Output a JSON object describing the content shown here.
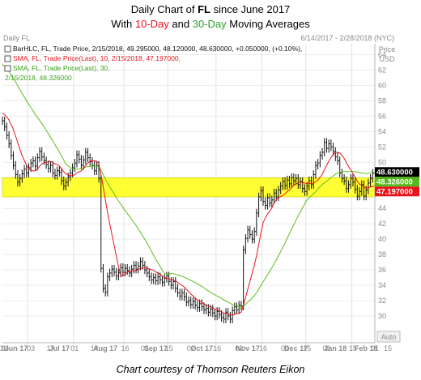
{
  "header": {
    "line1_pre": "Daily Chart of ",
    "line1_bold": "FL",
    "line1_post": " since June 2017",
    "line2_pre": "With ",
    "line2_ma10": "10-Day",
    "line2_mid": " and ",
    "line2_ma30": "30-Day",
    "line2_post": " Moving Averages"
  },
  "panel": {
    "name": "Daily FL",
    "date_range": "6/14/2017 - 2/28/2018 (NYC)",
    "price_label": "Price",
    "currency_label": "USD",
    "auto_label": "Auto"
  },
  "legend": {
    "bar": "BarHLC, FL, Trade Price, 2/15/2018, 49.295000, 48.120000, 48.630000, +0.050000, (+0.10%),",
    "sma10": "SMA, FL, Trade Price(Last),  10,  2/15/2018, 47.197000,",
    "sma30_a": "SMA, FL, Trade Price(Last),  30,",
    "sma30_b": "2/15/2018, 48.326000"
  },
  "value_tags": {
    "last": "48.630000",
    "sma30": "48.326000",
    "sma10": "47.197000"
  },
  "caption": "Chart courtesy of Thomson Reuters Eikon",
  "colors": {
    "price_bars": "#111111",
    "sma10": "#e8141c",
    "sma30": "#5cbf1c",
    "highlight": "#ffff33",
    "last_tag": "#000000",
    "sma30_tag": "#53b81a",
    "sma10_tag": "#e8141c"
  },
  "chart_data": {
    "type": "line",
    "title": "Daily Chart of FL since June 2017",
    "subtitle": "With 10-Day and 30-Day Moving Averages",
    "ylabel": "Price USD",
    "y_ticks": [
      30,
      32,
      34,
      36,
      38,
      40,
      42,
      44,
      46,
      48,
      50,
      52,
      54,
      56,
      58,
      60,
      62,
      64
    ],
    "ylim": [
      28,
      65
    ],
    "x_tick_labels": [
      "16",
      "Jun 17",
      "03",
      "17",
      "Jul 17",
      "01",
      "14",
      "Aug 17",
      "16",
      "01",
      "15",
      "Sep 17",
      "02",
      "16",
      "Oct 17",
      "02",
      "16",
      "Nov 17",
      "01",
      "15",
      "Dec 17",
      "01",
      "15",
      "Jan 18",
      "01",
      "15",
      "Feb 18",
      "01"
    ],
    "months": [
      "Jun 17",
      "Jul 17",
      "Aug 17",
      "Sep 17",
      "Oct 17",
      "Nov 17",
      "Dec 17",
      "Jan 18",
      "Feb 18"
    ],
    "highlight_band": [
      45.5,
      48
    ],
    "legend_position": "top-left",
    "grid": true,
    "series": [
      {
        "name": "BarHLC",
        "kind": "hlc",
        "bars": [
          {
            "date": "2017-06-14",
            "c": 55.4
          },
          {
            "date": "2017-06-15",
            "c": 54.6
          },
          {
            "date": "2017-06-16",
            "c": 53.5
          },
          {
            "date": "2017-06-19",
            "c": 52.4
          },
          {
            "date": "2017-06-20",
            "c": 50.9
          },
          {
            "date": "2017-06-21",
            "c": 49.6
          },
          {
            "date": "2017-06-22",
            "c": 48.4
          },
          {
            "date": "2017-06-23",
            "c": 47.4
          },
          {
            "date": "2017-06-26",
            "c": 47.9
          },
          {
            "date": "2017-06-27",
            "c": 48.5
          },
          {
            "date": "2017-06-28",
            "c": 49.1
          },
          {
            "date": "2017-06-29",
            "c": 48.6
          },
          {
            "date": "2017-06-30",
            "c": 49.3
          },
          {
            "date": "2017-07-03",
            "c": 49.9
          },
          {
            "date": "2017-07-05",
            "c": 50.2
          },
          {
            "date": "2017-07-06",
            "c": 49.5
          },
          {
            "date": "2017-07-07",
            "c": 50.6
          },
          {
            "date": "2017-07-10",
            "c": 51.4
          },
          {
            "date": "2017-07-11",
            "c": 50.7
          },
          {
            "date": "2017-07-12",
            "c": 50.2
          },
          {
            "date": "2017-07-13",
            "c": 49.7
          },
          {
            "date": "2017-07-14",
            "c": 49.2
          },
          {
            "date": "2017-07-17",
            "c": 49.6
          },
          {
            "date": "2017-07-18",
            "c": 48.6
          },
          {
            "date": "2017-07-19",
            "c": 48.3
          },
          {
            "date": "2017-07-20",
            "c": 48.9
          },
          {
            "date": "2017-07-21",
            "c": 48.7
          },
          {
            "date": "2017-07-24",
            "c": 47.6
          },
          {
            "date": "2017-07-25",
            "c": 46.9
          },
          {
            "date": "2017-07-26",
            "c": 47.4
          },
          {
            "date": "2017-07-27",
            "c": 48.1
          },
          {
            "date": "2017-07-28",
            "c": 48.6
          },
          {
            "date": "2017-07-31",
            "c": 49.3
          },
          {
            "date": "2017-08-01",
            "c": 49.9
          },
          {
            "date": "2017-08-02",
            "c": 51.0
          },
          {
            "date": "2017-08-03",
            "c": 50.4
          },
          {
            "date": "2017-08-04",
            "c": 49.6
          },
          {
            "date": "2017-08-07",
            "c": 50.3
          },
          {
            "date": "2017-08-08",
            "c": 51.3
          },
          {
            "date": "2017-08-09",
            "c": 50.6
          },
          {
            "date": "2017-08-10",
            "c": 50.1
          },
          {
            "date": "2017-08-11",
            "c": 49.6
          },
          {
            "date": "2017-08-14",
            "c": 48.9
          },
          {
            "date": "2017-08-15",
            "c": 49.6
          },
          {
            "date": "2017-08-16",
            "c": 47.9
          },
          {
            "date": "2017-08-17",
            "c": 36.2
          },
          {
            "date": "2017-08-18",
            "c": 33.6
          },
          {
            "date": "2017-08-21",
            "c": 33.1
          },
          {
            "date": "2017-08-22",
            "c": 35.1
          },
          {
            "date": "2017-08-23",
            "c": 35.6
          },
          {
            "date": "2017-08-24",
            "c": 36.1
          },
          {
            "date": "2017-08-25",
            "c": 35.7
          },
          {
            "date": "2017-08-28",
            "c": 35.2
          },
          {
            "date": "2017-08-29",
            "c": 35.6
          },
          {
            "date": "2017-08-30",
            "c": 36.3
          },
          {
            "date": "2017-08-31",
            "c": 35.7
          },
          {
            "date": "2017-09-01",
            "c": 36.2
          },
          {
            "date": "2017-09-05",
            "c": 35.9
          },
          {
            "date": "2017-09-06",
            "c": 35.6
          },
          {
            "date": "2017-09-07",
            "c": 36.1
          },
          {
            "date": "2017-09-08",
            "c": 36.6
          },
          {
            "date": "2017-09-11",
            "c": 36.1
          },
          {
            "date": "2017-09-12",
            "c": 36.5
          },
          {
            "date": "2017-09-13",
            "c": 37.1
          },
          {
            "date": "2017-09-14",
            "c": 36.6
          },
          {
            "date": "2017-09-15",
            "c": 36.0
          },
          {
            "date": "2017-09-18",
            "c": 35.6
          },
          {
            "date": "2017-09-19",
            "c": 35.1
          },
          {
            "date": "2017-09-20",
            "c": 34.7
          },
          {
            "date": "2017-09-21",
            "c": 35.0
          },
          {
            "date": "2017-09-22",
            "c": 34.6
          },
          {
            "date": "2017-09-25",
            "c": 35.1
          },
          {
            "date": "2017-09-26",
            "c": 34.7
          },
          {
            "date": "2017-09-27",
            "c": 34.4
          },
          {
            "date": "2017-09-28",
            "c": 34.9
          },
          {
            "date": "2017-09-29",
            "c": 35.2
          },
          {
            "date": "2017-10-02",
            "c": 34.5
          },
          {
            "date": "2017-10-03",
            "c": 34.0
          },
          {
            "date": "2017-10-04",
            "c": 34.5
          },
          {
            "date": "2017-10-05",
            "c": 33.6
          },
          {
            "date": "2017-10-06",
            "c": 33.0
          },
          {
            "date": "2017-10-09",
            "c": 32.6
          },
          {
            "date": "2017-10-10",
            "c": 33.0
          },
          {
            "date": "2017-10-11",
            "c": 32.5
          },
          {
            "date": "2017-10-12",
            "c": 31.8
          },
          {
            "date": "2017-10-13",
            "c": 32.0
          },
          {
            "date": "2017-10-16",
            "c": 31.5
          },
          {
            "date": "2017-10-17",
            "c": 31.9
          },
          {
            "date": "2017-10-18",
            "c": 31.4
          },
          {
            "date": "2017-10-19",
            "c": 31.1
          },
          {
            "date": "2017-10-20",
            "c": 31.6
          },
          {
            "date": "2017-10-23",
            "c": 31.2
          },
          {
            "date": "2017-10-24",
            "c": 30.8
          },
          {
            "date": "2017-10-25",
            "c": 31.0
          },
          {
            "date": "2017-10-26",
            "c": 30.5
          },
          {
            "date": "2017-10-27",
            "c": 30.9
          },
          {
            "date": "2017-10-30",
            "c": 30.4
          },
          {
            "date": "2017-10-31",
            "c": 30.0
          },
          {
            "date": "2017-11-01",
            "c": 30.6
          },
          {
            "date": "2017-11-02",
            "c": 30.2
          },
          {
            "date": "2017-11-03",
            "c": 29.8
          },
          {
            "date": "2017-11-06",
            "c": 29.6
          },
          {
            "date": "2017-11-07",
            "c": 30.5
          },
          {
            "date": "2017-11-08",
            "c": 30.0
          },
          {
            "date": "2017-11-09",
            "c": 29.6
          },
          {
            "date": "2017-11-10",
            "c": 30.7
          },
          {
            "date": "2017-11-13",
            "c": 31.2
          },
          {
            "date": "2017-11-14",
            "c": 30.8
          },
          {
            "date": "2017-11-15",
            "c": 31.4
          },
          {
            "date": "2017-11-16",
            "c": 31.3
          },
          {
            "date": "2017-11-17",
            "c": 38.6
          },
          {
            "date": "2017-11-20",
            "c": 40.1
          },
          {
            "date": "2017-11-21",
            "c": 41.2
          },
          {
            "date": "2017-11-22",
            "c": 40.6
          },
          {
            "date": "2017-11-24",
            "c": 40.0
          },
          {
            "date": "2017-11-27",
            "c": 41.0
          },
          {
            "date": "2017-11-28",
            "c": 43.4
          },
          {
            "date": "2017-11-29",
            "c": 45.5
          },
          {
            "date": "2017-11-30",
            "c": 46.3
          },
          {
            "date": "2017-12-01",
            "c": 44.9
          },
          {
            "date": "2017-12-04",
            "c": 44.4
          },
          {
            "date": "2017-12-05",
            "c": 45.4
          },
          {
            "date": "2017-12-06",
            "c": 44.7
          },
          {
            "date": "2017-12-07",
            "c": 45.1
          },
          {
            "date": "2017-12-08",
            "c": 46.0
          },
          {
            "date": "2017-12-11",
            "c": 45.5
          },
          {
            "date": "2017-12-12",
            "c": 46.4
          },
          {
            "date": "2017-12-13",
            "c": 46.9
          },
          {
            "date": "2017-12-14",
            "c": 47.5
          },
          {
            "date": "2017-12-15",
            "c": 47.0
          },
          {
            "date": "2017-12-18",
            "c": 47.7
          },
          {
            "date": "2017-12-19",
            "c": 47.2
          },
          {
            "date": "2017-12-20",
            "c": 48.0
          },
          {
            "date": "2017-12-21",
            "c": 47.6
          },
          {
            "date": "2017-12-22",
            "c": 47.9
          },
          {
            "date": "2017-12-26",
            "c": 47.1
          },
          {
            "date": "2017-12-27",
            "c": 47.5
          },
          {
            "date": "2017-12-28",
            "c": 46.6
          },
          {
            "date": "2017-12-29",
            "c": 46.2
          },
          {
            "date": "2018-01-02",
            "c": 46.9
          },
          {
            "date": "2018-01-03",
            "c": 47.6
          },
          {
            "date": "2018-01-04",
            "c": 47.1
          },
          {
            "date": "2018-01-05",
            "c": 48.4
          },
          {
            "date": "2018-01-08",
            "c": 49.6
          },
          {
            "date": "2018-01-09",
            "c": 49.9
          },
          {
            "date": "2018-01-10",
            "c": 50.9
          },
          {
            "date": "2018-01-11",
            "c": 51.3
          },
          {
            "date": "2018-01-12",
            "c": 52.6
          },
          {
            "date": "2018-01-16",
            "c": 51.8
          },
          {
            "date": "2018-01-17",
            "c": 52.4
          },
          {
            "date": "2018-01-18",
            "c": 52.0
          },
          {
            "date": "2018-01-19",
            "c": 51.4
          },
          {
            "date": "2018-01-22",
            "c": 50.7
          },
          {
            "date": "2018-01-23",
            "c": 50.2
          },
          {
            "date": "2018-01-24",
            "c": 48.6
          },
          {
            "date": "2018-01-25",
            "c": 47.9
          },
          {
            "date": "2018-01-26",
            "c": 47.6
          },
          {
            "date": "2018-01-29",
            "c": 46.6
          },
          {
            "date": "2018-01-30",
            "c": 47.1
          },
          {
            "date": "2018-01-31",
            "c": 47.9
          },
          {
            "date": "2018-02-01",
            "c": 47.4
          },
          {
            "date": "2018-02-02",
            "c": 46.5
          },
          {
            "date": "2018-02-05",
            "c": 45.6
          },
          {
            "date": "2018-02-06",
            "c": 46.2
          },
          {
            "date": "2018-02-07",
            "c": 47.1
          },
          {
            "date": "2018-02-08",
            "c": 45.6
          },
          {
            "date": "2018-02-09",
            "c": 46.4
          },
          {
            "date": "2018-02-12",
            "c": 47.3
          },
          {
            "date": "2018-02-13",
            "c": 47.9
          },
          {
            "date": "2018-02-14",
            "c": 48.58
          },
          {
            "date": "2018-02-15",
            "c": 48.63,
            "h": 49.295,
            "l": 48.12
          }
        ]
      },
      {
        "name": "SMA 10",
        "last": 47.197
      },
      {
        "name": "SMA 30",
        "last": 48.326
      }
    ]
  }
}
